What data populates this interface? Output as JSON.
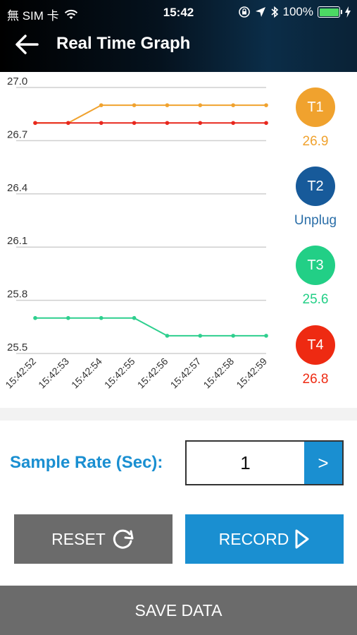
{
  "status_bar": {
    "carrier": "無 SIM 卡",
    "time": "15:42",
    "battery": "100%"
  },
  "header": {
    "title": "Real Time Graph"
  },
  "chart_data": {
    "type": "line",
    "ylim": [
      25.5,
      27.0
    ],
    "yticks": [
      "27.0",
      "26.7",
      "26.4",
      "26.1",
      "25.8",
      "25.5"
    ],
    "ytick_values": [
      27.0,
      26.7,
      26.4,
      26.1,
      25.8,
      25.5
    ],
    "categories": [
      "15:42:52",
      "15:42:53",
      "15:42:54",
      "15:42:55",
      "15:42:56",
      "15:42:57",
      "15:42:58",
      "15:42:59"
    ],
    "series": [
      {
        "color": "#f0a22e",
        "values": [
          26.8,
          26.8,
          26.9,
          26.9,
          26.9,
          26.9,
          26.9,
          26.9
        ]
      },
      {
        "color": "#e8281e",
        "values": [
          26.8,
          26.8,
          26.8,
          26.8,
          26.8,
          26.8,
          26.8,
          26.8
        ]
      },
      {
        "color": "#2ecf8e",
        "values": [
          25.7,
          25.7,
          25.7,
          25.7,
          25.6,
          25.6,
          25.6,
          25.6
        ]
      }
    ],
    "grid": true
  },
  "sensors": [
    {
      "label": "T1",
      "value": "26.9",
      "color": "#f0a22e",
      "text_color": "#f0a22e"
    },
    {
      "label": "T2",
      "value": "Unplug",
      "color": "#175a9a",
      "text_color": "#2a6ea8"
    },
    {
      "label": "T3",
      "value": "25.6",
      "color": "#22cf86",
      "text_color": "#22cf86"
    },
    {
      "label": "T4",
      "value": "26.8",
      "color": "#ee2a12",
      "text_color": "#ee2a12"
    }
  ],
  "sample_rate": {
    "label": "Sample Rate (Sec):",
    "value": "1",
    "next": ">"
  },
  "buttons": {
    "reset": "RESET",
    "record": "RECORD",
    "save": "SAVE DATA"
  }
}
